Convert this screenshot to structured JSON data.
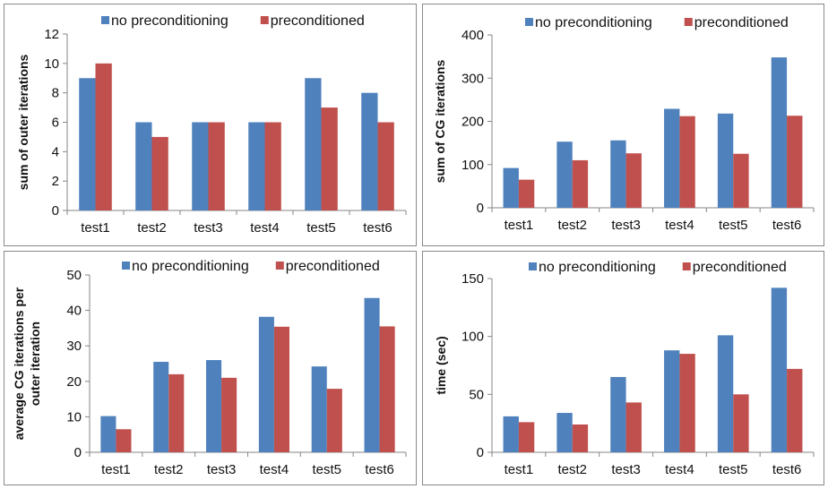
{
  "colors": {
    "series_a": "#4F81BD",
    "series_b": "#C0504D",
    "axis": "#868686"
  },
  "chart_data": [
    {
      "type": "bar",
      "categories": [
        "test1",
        "test2",
        "test3",
        "test4",
        "test5",
        "test6"
      ],
      "series": [
        {
          "name": "no preconditioning",
          "values": [
            9,
            6,
            6,
            6,
            9,
            8
          ]
        },
        {
          "name": "preconditioned",
          "values": [
            10,
            5,
            6,
            6,
            7,
            6
          ]
        }
      ],
      "ylabel": [
        "sum of outer iterations"
      ],
      "ylim": [
        0,
        12
      ],
      "yticks": [
        "0",
        "2",
        "4",
        "6",
        "8",
        "10",
        "12"
      ],
      "legend": "top",
      "grid": false
    },
    {
      "type": "bar",
      "categories": [
        "test1",
        "test2",
        "test3",
        "test4",
        "test5",
        "test6"
      ],
      "series": [
        {
          "name": "no preconditioning",
          "values": [
            92,
            153,
            156,
            229,
            218,
            348
          ]
        },
        {
          "name": "preconditioned",
          "values": [
            65,
            110,
            126,
            212,
            125,
            213
          ]
        }
      ],
      "ylabel": [
        "sum of CG iterations"
      ],
      "ylim": [
        0,
        400
      ],
      "yticks": [
        "0",
        "100",
        "200",
        "300",
        "400"
      ],
      "legend": "top",
      "grid": false
    },
    {
      "type": "bar",
      "categories": [
        "test1",
        "test2",
        "test3",
        "test4",
        "test5",
        "test6"
      ],
      "series": [
        {
          "name": "no preconditioning",
          "values": [
            10.2,
            25.5,
            26,
            38.2,
            24.2,
            43.5
          ]
        },
        {
          "name": "preconditioned",
          "values": [
            6.5,
            22,
            21,
            35.4,
            17.9,
            35.5
          ]
        }
      ],
      "ylabel": [
        "average CG iterations per",
        "outer iteration"
      ],
      "ylim": [
        0,
        50
      ],
      "yticks": [
        "0",
        "10",
        "20",
        "30",
        "40",
        "50"
      ],
      "legend": "top",
      "grid": false
    },
    {
      "type": "bar",
      "categories": [
        "test1",
        "test2",
        "test3",
        "test4",
        "test5",
        "test6"
      ],
      "series": [
        {
          "name": "no preconditioning",
          "values": [
            31,
            34,
            65,
            88,
            101,
            142
          ]
        },
        {
          "name": "preconditioned",
          "values": [
            26,
            24,
            43,
            85,
            50,
            72
          ]
        }
      ],
      "ylabel": [
        "time (sec)"
      ],
      "ylim": [
        0,
        150
      ],
      "yticks": [
        "0",
        "50",
        "100",
        "150"
      ],
      "legend": "top",
      "grid": false
    }
  ]
}
